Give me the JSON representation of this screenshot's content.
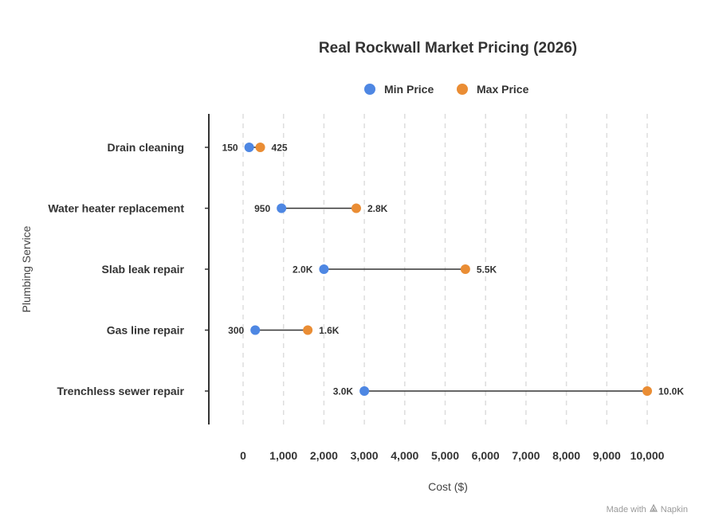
{
  "colors": {
    "min": "#4e87e3",
    "max": "#ea8d34",
    "connector": "#333333",
    "grid": "#dddddd",
    "axis": "#333333"
  },
  "footer": {
    "made_with": "Made with",
    "brand": "Napkin"
  },
  "chart_data": {
    "type": "dumbbell",
    "title": "Real Rockwall Market Pricing (2026)",
    "xlabel": "Cost ($)",
    "ylabel": "Plumbing Service",
    "xlim": [
      0,
      10000
    ],
    "xticks": [
      0,
      1000,
      2000,
      3000,
      4000,
      5000,
      6000,
      7000,
      8000,
      9000,
      10000
    ],
    "xtick_labels": [
      "0",
      "1,000",
      "2,000",
      "3,000",
      "4,000",
      "5,000",
      "6,000",
      "7,000",
      "8,000",
      "9,000",
      "10,000"
    ],
    "grid": "vertical dashed",
    "legend": {
      "position": "top-center",
      "entries": [
        "Min Price",
        "Max Price"
      ]
    },
    "categories": [
      "Drain cleaning",
      "Water heater replacement",
      "Slab leak repair",
      "Gas line repair",
      "Trenchless sewer repair"
    ],
    "series": [
      {
        "name": "Min Price",
        "values": [
          150,
          950,
          2000,
          300,
          3000
        ],
        "labels": [
          "150",
          "950",
          "2.0K",
          "300",
          "3.0K"
        ]
      },
      {
        "name": "Max Price",
        "values": [
          425,
          2800,
          5500,
          1600,
          10000
        ],
        "labels": [
          "425",
          "2.8K",
          "5.5K",
          "1.6K",
          "10.0K"
        ]
      }
    ]
  }
}
